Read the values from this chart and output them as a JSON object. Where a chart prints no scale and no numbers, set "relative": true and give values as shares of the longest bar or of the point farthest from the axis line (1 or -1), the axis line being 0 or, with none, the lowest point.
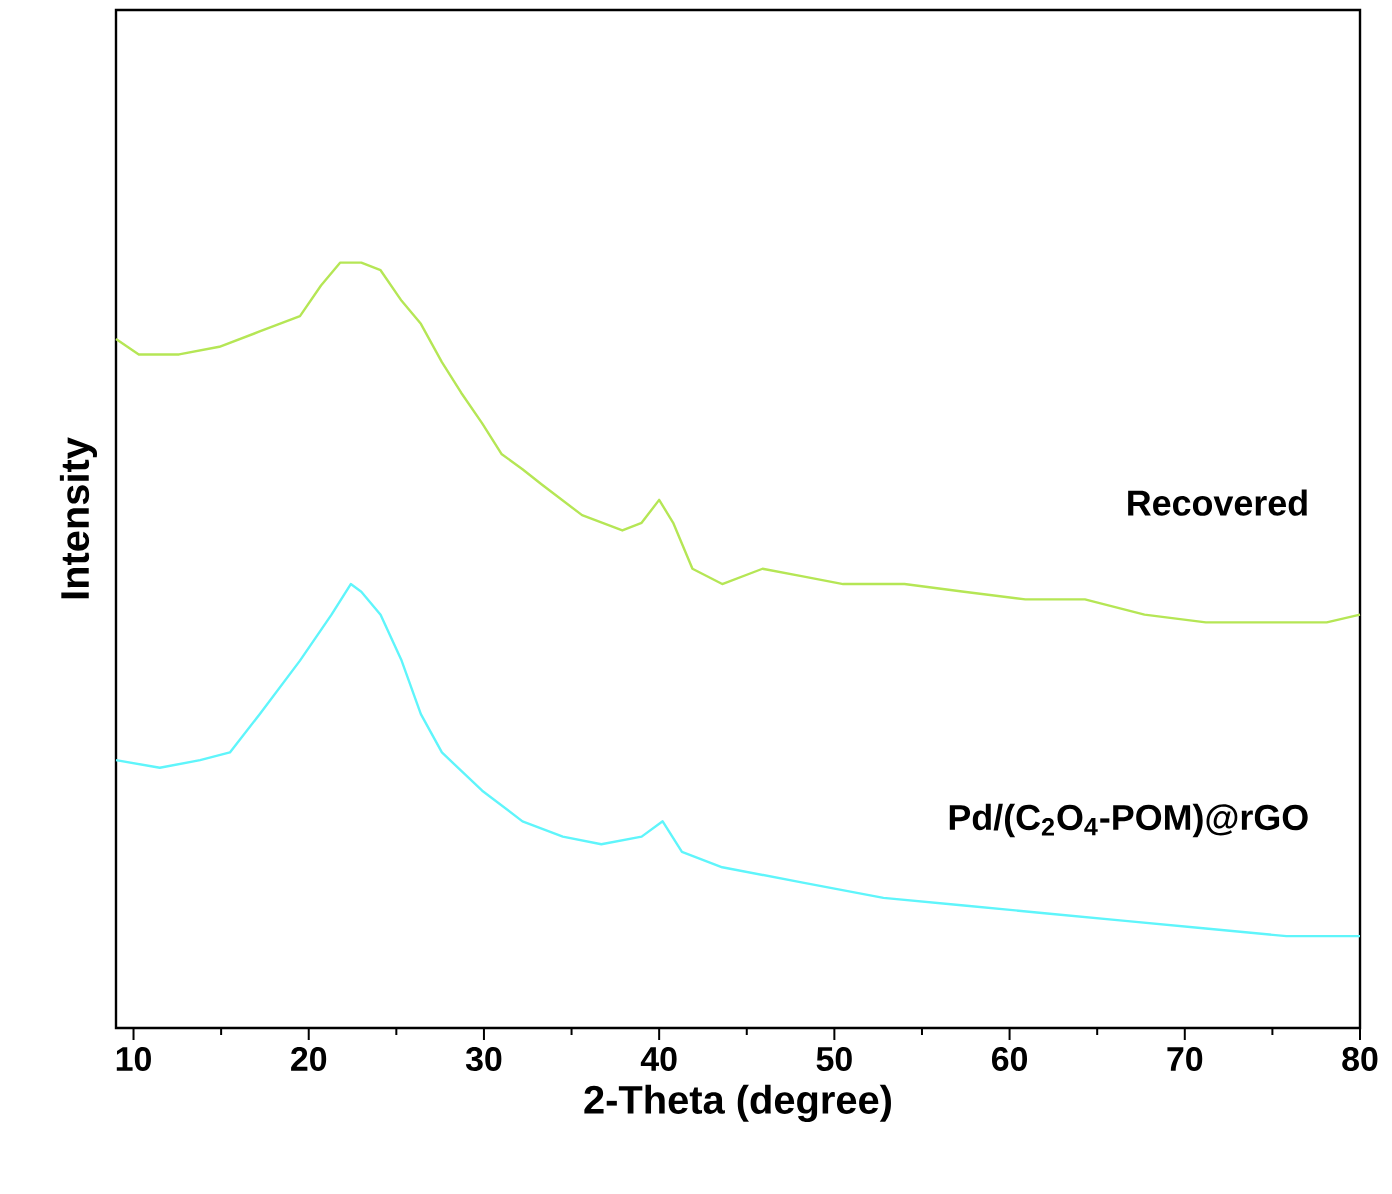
{
  "chart_data": {
    "type": "line",
    "relative": true,
    "xlabel": "2-Theta (degree)",
    "ylabel": "Intensity",
    "xlim": [
      9,
      80
    ],
    "xticks": [
      10,
      20,
      30,
      40,
      50,
      60,
      70,
      80
    ],
    "tick_labels": "x",
    "legend": false,
    "series": [
      {
        "name": "Recovered",
        "color": "#b5e655",
        "x": [
          9,
          10.3,
          12.6,
          14.9,
          17.2,
          19.5,
          20.7,
          21.8,
          23.0,
          24.1,
          25.3,
          26.4,
          27.6,
          28.7,
          29.9,
          31.0,
          32.2,
          33.3,
          35.6,
          37.9,
          39.0,
          40.0,
          40.8,
          41.9,
          43.6,
          45.9,
          48.2,
          50.5,
          54.0,
          57.4,
          60.9,
          64.3,
          67.7,
          71.2,
          74.6,
          78.1,
          80
        ],
        "values": [
          0.9,
          0.88,
          0.88,
          0.89,
          0.91,
          0.93,
          0.97,
          1.0,
          1.0,
          0.99,
          0.95,
          0.92,
          0.87,
          0.83,
          0.79,
          0.75,
          0.73,
          0.71,
          0.67,
          0.65,
          0.66,
          0.69,
          0.66,
          0.6,
          0.58,
          0.6,
          0.59,
          0.58,
          0.58,
          0.57,
          0.56,
          0.56,
          0.54,
          0.53,
          0.53,
          0.53,
          0.54
        ]
      },
      {
        "name": "Pd/(C$_{2}$O$_{4}$-POM)@rGO",
        "color": "#5ff5fb",
        "x": [
          9,
          11.5,
          13.8,
          15.5,
          17.2,
          19.5,
          21.3,
          22.4,
          23.0,
          24.1,
          25.3,
          26.4,
          27.6,
          29.9,
          32.2,
          34.5,
          36.7,
          39.0,
          40.2,
          41.3,
          43.6,
          48.2,
          52.8,
          57.4,
          62.0,
          66.6,
          71.2,
          75.8,
          80
        ],
        "values": [
          0.35,
          0.34,
          0.35,
          0.36,
          0.41,
          0.48,
          0.54,
          0.58,
          0.57,
          0.54,
          0.48,
          0.41,
          0.36,
          0.31,
          0.27,
          0.25,
          0.24,
          0.25,
          0.27,
          0.23,
          0.21,
          0.19,
          0.17,
          0.16,
          0.15,
          0.14,
          0.13,
          0.12,
          0.12
        ]
      }
    ]
  }
}
